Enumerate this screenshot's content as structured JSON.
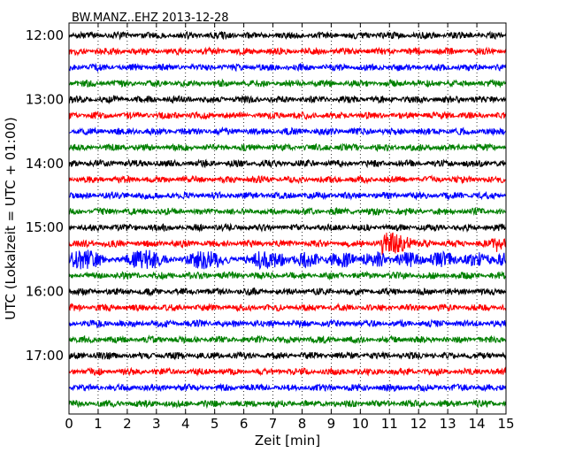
{
  "chart_data": {
    "type": "line",
    "title": "BW.MANZ..EHZ 2013-12-28",
    "xlabel": "Zeit  [min]",
    "ylabel": "UTC (Lokalzeit = UTC + 01:00)",
    "xlim": [
      0,
      15
    ],
    "x_ticks": [
      "0",
      "1",
      "2",
      "3",
      "4",
      "5",
      "6",
      "7",
      "8",
      "9",
      "10",
      "11",
      "12",
      "13",
      "14",
      "15"
    ],
    "y_ticks": [
      "12:00",
      "13:00",
      "14:00",
      "15:00",
      "16:00",
      "17:00"
    ],
    "grid": "vertical dotted",
    "colors": [
      "#000000",
      "#ff0000",
      "#0000ff",
      "#008000"
    ],
    "series": [
      {
        "time": "12:00",
        "color": "#000000",
        "amp": 4
      },
      {
        "time": "12:15",
        "color": "#ff0000",
        "amp": 4
      },
      {
        "time": "12:30",
        "color": "#0000ff",
        "amp": 4
      },
      {
        "time": "12:45",
        "color": "#008000",
        "amp": 4
      },
      {
        "time": "13:00",
        "color": "#000000",
        "amp": 4
      },
      {
        "time": "13:15",
        "color": "#ff0000",
        "amp": 4
      },
      {
        "time": "13:30",
        "color": "#0000ff",
        "amp": 4
      },
      {
        "time": "13:45",
        "color": "#008000",
        "amp": 4
      },
      {
        "time": "14:00",
        "color": "#000000",
        "amp": 4
      },
      {
        "time": "14:15",
        "color": "#ff0000",
        "amp": 4
      },
      {
        "time": "14:30",
        "color": "#0000ff",
        "amp": 4
      },
      {
        "time": "14:45",
        "color": "#008000",
        "amp": 4
      },
      {
        "time": "15:00",
        "color": "#000000",
        "amp": 4
      },
      {
        "time": "15:15",
        "color": "#ff0000",
        "amp": 4,
        "event": {
          "start": 10.75,
          "end": 12.4,
          "amp": 16
        },
        "event2": {
          "start": 14.5,
          "end": 15,
          "amp": 10
        }
      },
      {
        "time": "15:30",
        "color": "#0000ff",
        "amp": 9,
        "event": {
          "start": 0,
          "end": 7,
          "amp": 12
        }
      },
      {
        "time": "15:45",
        "color": "#008000",
        "amp": 4
      },
      {
        "time": "16:00",
        "color": "#000000",
        "amp": 4
      },
      {
        "time": "16:15",
        "color": "#ff0000",
        "amp": 4
      },
      {
        "time": "16:30",
        "color": "#0000ff",
        "amp": 4
      },
      {
        "time": "16:45",
        "color": "#008000",
        "amp": 4
      },
      {
        "time": "17:00",
        "color": "#000000",
        "amp": 4
      },
      {
        "time": "17:15",
        "color": "#ff0000",
        "amp": 4
      },
      {
        "time": "17:30",
        "color": "#0000ff",
        "amp": 4
      },
      {
        "time": "17:45",
        "color": "#008000",
        "amp": 4
      }
    ]
  }
}
